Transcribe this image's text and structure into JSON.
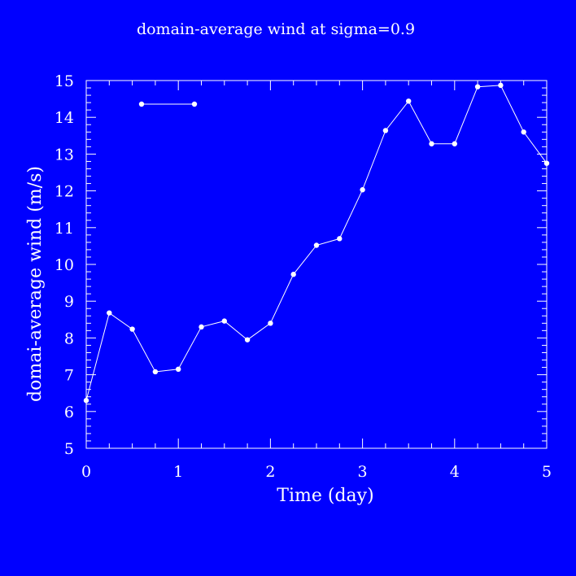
{
  "chart_data": {
    "type": "line",
    "title": "domain-average wind at sigma=0.9",
    "xlabel": "Time (day)",
    "ylabel": "domai-average wind (m/s)",
    "xlim": [
      0,
      5
    ],
    "ylim": [
      5,
      15
    ],
    "xticks": [
      "0",
      "1",
      "2",
      "3",
      "4",
      "5"
    ],
    "yticks": [
      "5",
      "6",
      "7",
      "8",
      "9",
      "10",
      "11",
      "12",
      "13",
      "14",
      "15"
    ],
    "grid": false,
    "legend": "top-left",
    "colors": {
      "background": "#0000ff",
      "foreground": "#ffffff"
    },
    "series": [
      {
        "x": [
          0,
          0.25,
          0.5,
          0.75,
          1.0,
          1.25,
          1.5,
          1.75,
          2.0,
          2.25,
          2.5,
          2.75,
          3.0,
          3.25,
          3.5,
          3.75,
          4.0,
          4.25,
          4.5,
          4.75,
          5.0
        ],
        "values": [
          6.3,
          8.68,
          8.24,
          7.08,
          7.15,
          8.3,
          8.46,
          7.95,
          8.4,
          9.73,
          10.52,
          10.7,
          12.03,
          13.64,
          14.44,
          13.28,
          13.28,
          14.83,
          14.87,
          13.6,
          12.75
        ]
      }
    ]
  }
}
